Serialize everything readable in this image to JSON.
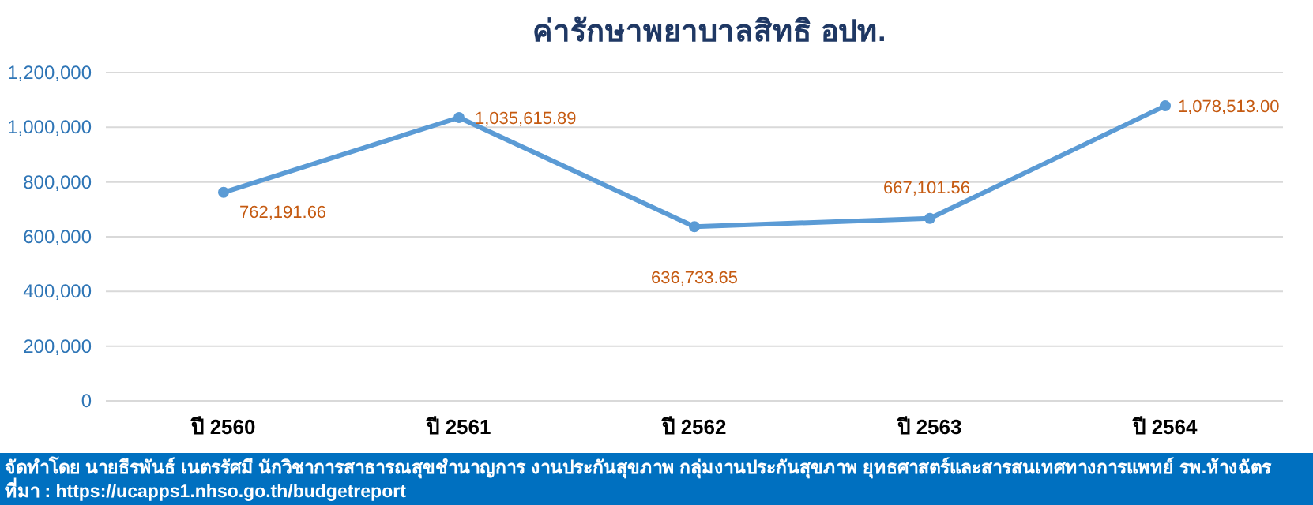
{
  "chart_data": {
    "type": "line",
    "title": "ค่ารักษาพยาบาลสิทธิ อปท.",
    "categories": [
      "ปี 2560",
      "ปี 2561",
      "ปี 2562",
      "ปี 2563",
      "ปี 2564"
    ],
    "series": [
      {
        "color": "#5b9bd5",
        "values": [
          762191.66,
          1035615.89,
          636733.65,
          667101.56,
          1078513.0
        ],
        "value_labels": [
          "762,191.66",
          "1,035,615.89",
          "636,733.65",
          "667,101.56",
          "1,078,513.00"
        ]
      }
    ],
    "ylim": [
      0,
      1200000
    ],
    "yticks": [
      {
        "value": 0,
        "label": "0"
      },
      {
        "value": 200000,
        "label": "200,000"
      },
      {
        "value": 400000,
        "label": "400,000"
      },
      {
        "value": 600000,
        "label": "600,000"
      },
      {
        "value": 800000,
        "label": "800,000"
      },
      {
        "value": 1000000,
        "label": "1,000,000"
      },
      {
        "value": 1200000,
        "label": "1,200,000"
      }
    ],
    "grid": "y",
    "marker": "circle",
    "line_style": "solid",
    "annotations": [
      "จัดทำโดย นายธีรพันธ์ เนตรรัศมี นักวิชาการสาธารณสุขชำนาญการ งานประกันสุขภาพ กลุ่มงานประกันสุขภาพ ยุทธศาสตร์และสารสนเทศทางการแพทย์ รพ.ห้างฉัตร",
      "ที่มา : https://ucapps1.nhso.go.th/budgetreport"
    ]
  }
}
